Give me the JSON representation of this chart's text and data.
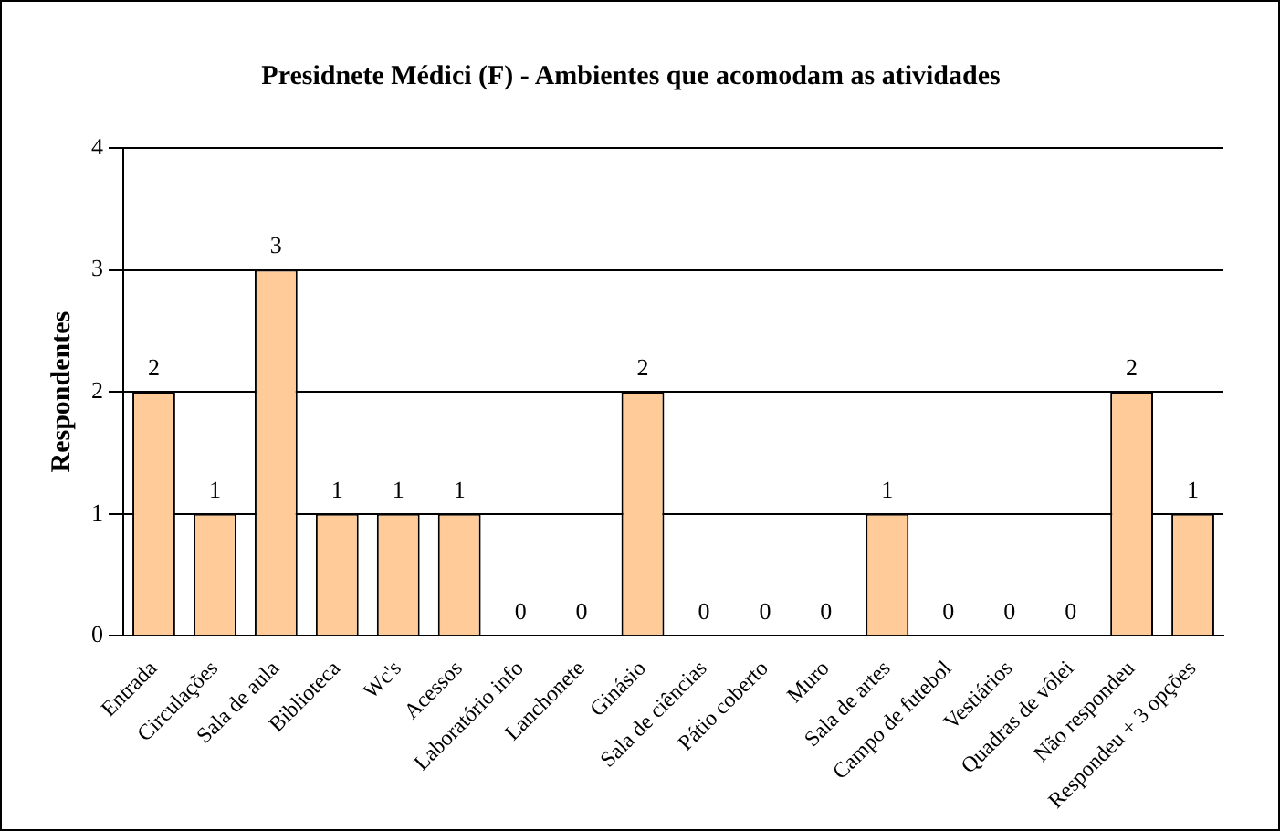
{
  "chart_data": {
    "type": "bar",
    "title": "Presidnete Médici (F) - Ambientes que acomodam as atividades",
    "ylabel": "Respondentes",
    "categories": [
      "Entrada",
      "Circulações",
      "Sala de aula",
      "Biblioteca",
      "Wc's",
      "Acessos",
      "Laboratório info",
      "Lanchonete",
      "Ginásio",
      "Sala de ciências",
      "Pátio coberto",
      "Muro",
      "Sala de artes",
      "Campo de futebol",
      "Vestiários",
      "Quadras de vôlei",
      "Não respondeu",
      "Respondeu + 3 opções"
    ],
    "values": [
      2,
      1,
      3,
      1,
      1,
      1,
      0,
      0,
      2,
      0,
      0,
      0,
      1,
      0,
      0,
      0,
      2,
      1
    ],
    "color": "#ffcc99",
    "ylim": [
      0,
      4
    ],
    "yticks": [
      0,
      1,
      2,
      3,
      4
    ],
    "grid": "y",
    "data_labels": true,
    "legend": false
  }
}
